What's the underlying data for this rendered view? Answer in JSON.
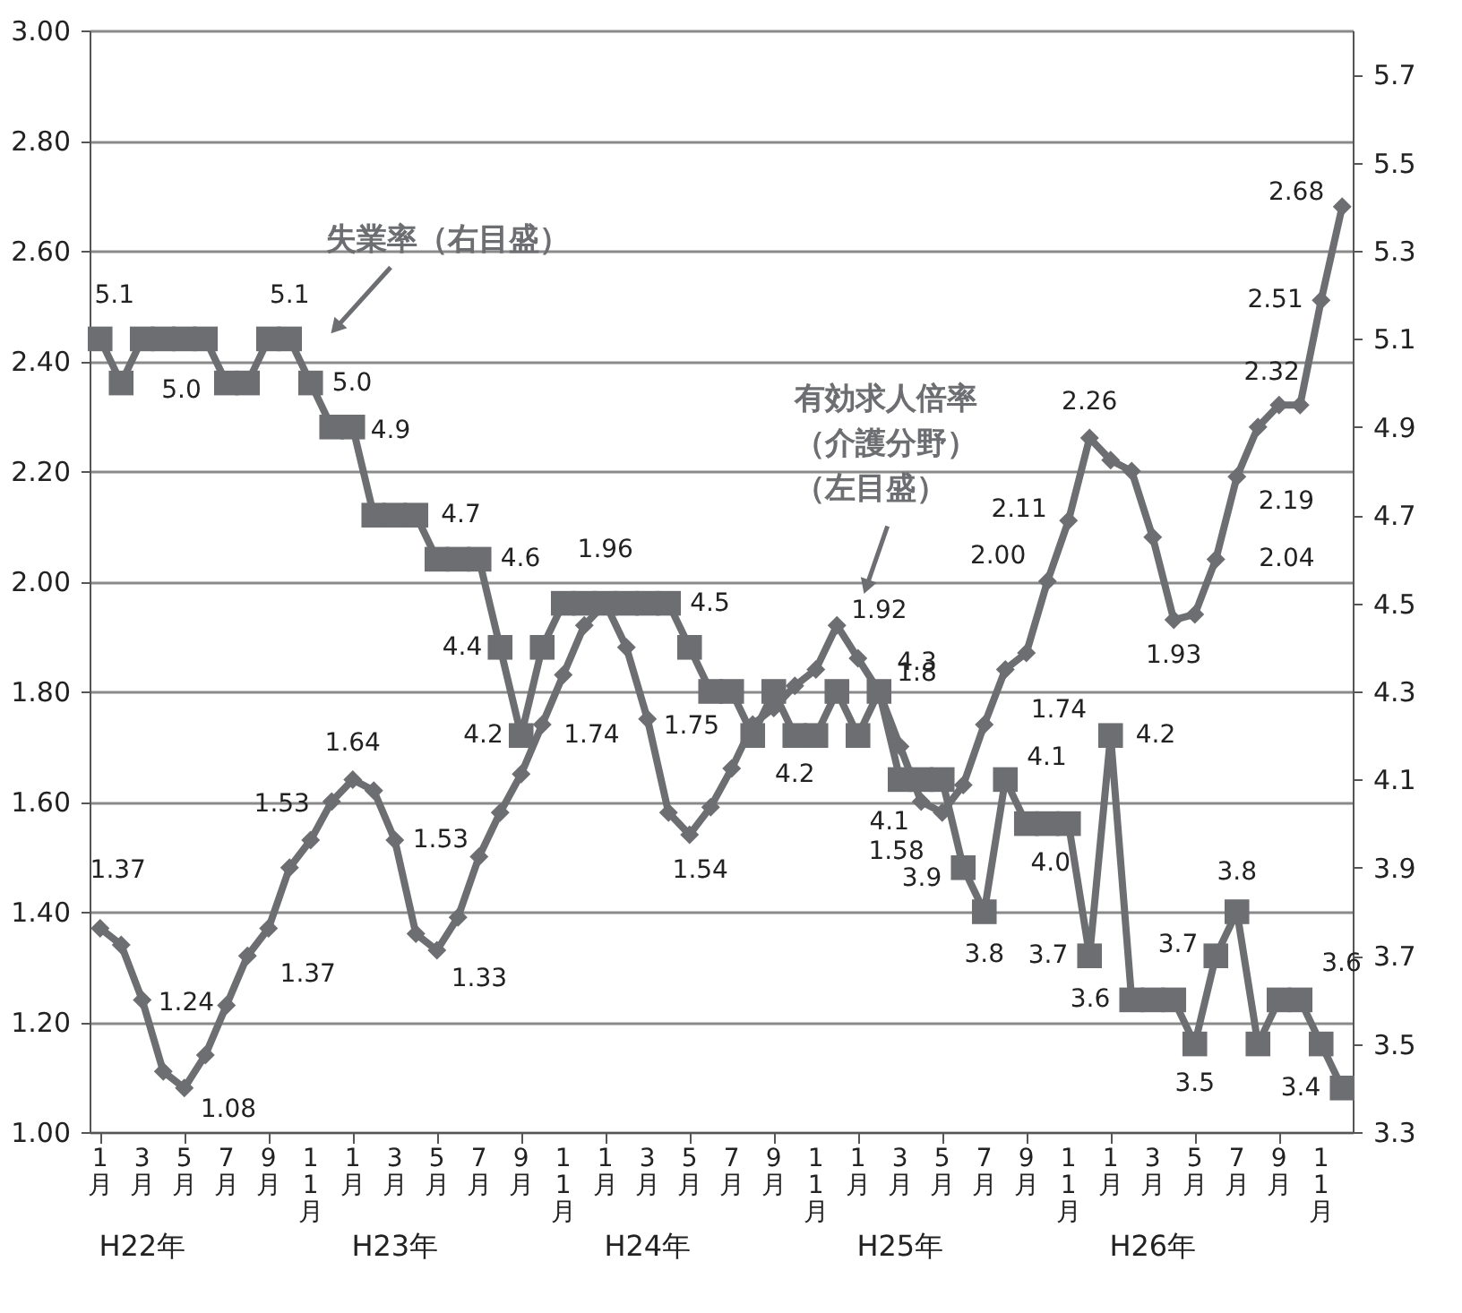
{
  "chart_data": {
    "type": "line",
    "categories": [
      "1月",
      null,
      "3月",
      null,
      "5月",
      null,
      "7月",
      null,
      "9月",
      null,
      "11月",
      null,
      "1月",
      null,
      "3月",
      null,
      "5月",
      null,
      "7月",
      null,
      "9月",
      null,
      "11月",
      null,
      "1月",
      null,
      "3月",
      null,
      "5月",
      null,
      "7月",
      null,
      "9月",
      null,
      "11月",
      null,
      "1月",
      null,
      "3月",
      null,
      "5月",
      null,
      "7月",
      null,
      "9月",
      null,
      "11月",
      null,
      "1月",
      null,
      "3月",
      null,
      "5月",
      null,
      "7月",
      null,
      "9月",
      null,
      "11月",
      null
    ],
    "series": [
      {
        "name": "有効求人倍率（介護分野）（左目盛）",
        "color": "#6d6e71",
        "marker": "diamond",
        "values": [
          1.37,
          1.34,
          1.24,
          1.11,
          1.08,
          1.14,
          1.23,
          1.32,
          1.37,
          1.48,
          1.53,
          1.6,
          1.64,
          1.62,
          1.53,
          1.36,
          1.33,
          1.39,
          1.5,
          1.58,
          1.65,
          1.74,
          1.83,
          1.92,
          1.96,
          1.88,
          1.75,
          1.58,
          1.54,
          1.59,
          1.66,
          1.74,
          1.77,
          1.81,
          1.84,
          1.92,
          1.86,
          1.8,
          1.7,
          1.6,
          1.58,
          1.63,
          1.74,
          1.84,
          1.87,
          2.0,
          2.11,
          2.26,
          2.22,
          2.2,
          2.08,
          1.93,
          1.94,
          2.04,
          2.19,
          2.28,
          2.32,
          2.32,
          2.51,
          2.68
        ],
        "value_labels": [
          "1.37",
          null,
          "1.24",
          null,
          "1.08",
          null,
          null,
          null,
          "1.37",
          null,
          "1.53",
          null,
          "1.64",
          null,
          "1.53",
          null,
          "1.33",
          null,
          null,
          null,
          null,
          "1.74",
          null,
          null,
          "1.96",
          null,
          "1.75",
          null,
          "1.54",
          null,
          null,
          null,
          null,
          null,
          null,
          "1.92",
          null,
          "1.8",
          null,
          null,
          "1.58",
          null,
          "1.74",
          null,
          null,
          "2.00",
          "2.11",
          "2.26",
          null,
          null,
          null,
          "1.93",
          null,
          "2.04",
          "2.19",
          null,
          "2.32",
          null,
          "2.51",
          "2.68"
        ]
      },
      {
        "name": "失業率（右目盛）",
        "color": "#6d6e71",
        "marker": "square",
        "axis": "y2",
        "values": [
          5.1,
          5.0,
          5.1,
          5.1,
          5.1,
          5.1,
          5.0,
          5.0,
          5.1,
          5.1,
          5.0,
          4.9,
          4.9,
          4.7,
          4.7,
          4.7,
          4.6,
          4.6,
          4.6,
          4.4,
          4.2,
          4.4,
          4.5,
          4.5,
          4.5,
          4.5,
          4.5,
          4.5,
          4.4,
          4.3,
          4.3,
          4.2,
          4.3,
          4.2,
          4.2,
          4.3,
          4.2,
          4.3,
          4.1,
          4.1,
          4.1,
          3.9,
          3.8,
          4.1,
          4.0,
          4.0,
          4.0,
          3.7,
          4.2,
          3.6,
          3.6,
          3.6,
          3.5,
          3.7,
          3.8,
          3.5,
          3.6,
          3.6,
          3.5,
          3.4
        ],
        "value_labels": [
          "5.1",
          null,
          null,
          null,
          null,
          null,
          "5.0",
          null,
          null,
          "5.1",
          "5.0",
          null,
          "4.9",
          null,
          null,
          "4.7",
          null,
          null,
          "4.6",
          "4.4",
          "4.2",
          null,
          null,
          null,
          null,
          null,
          null,
          "4.5",
          null,
          null,
          null,
          null,
          null,
          "4.2",
          null,
          null,
          null,
          "4.3",
          "4.1",
          null,
          null,
          "3.9",
          "3.8",
          "4.1",
          null,
          null,
          "4.0",
          "3.7",
          "4.2",
          "3.6",
          null,
          null,
          "3.5",
          "3.7",
          "3.8",
          null,
          null,
          "3.6",
          null,
          "3.4"
        ]
      }
    ],
    "ylim": [
      1.0,
      3.0
    ],
    "yticks": [
      {
        "value": 1.0,
        "label": "1.00"
      },
      {
        "value": 1.2,
        "label": "1.20"
      },
      {
        "value": 1.4,
        "label": "1.40"
      },
      {
        "value": 1.6,
        "label": "1.60"
      },
      {
        "value": 1.8,
        "label": "1.80"
      },
      {
        "value": 2.0,
        "label": "2.00"
      },
      {
        "value": 2.2,
        "label": "2.20"
      },
      {
        "value": 2.4,
        "label": "2.40"
      },
      {
        "value": 2.6,
        "label": "2.60"
      },
      {
        "value": 2.8,
        "label": "2.80"
      },
      {
        "value": 3.0,
        "label": "3.00"
      }
    ],
    "y2lim": [
      3.3,
      5.8
    ],
    "y2ticks": [
      3.3,
      3.5,
      3.7,
      3.9,
      4.1,
      4.3,
      4.5,
      4.7,
      4.9,
      5.1,
      5.3,
      5.5,
      5.7
    ],
    "grid": "y",
    "line_style": "solid",
    "annotations": [
      "H22年",
      "H23年",
      "H24年",
      "H25年",
      "H26年"
    ]
  }
}
